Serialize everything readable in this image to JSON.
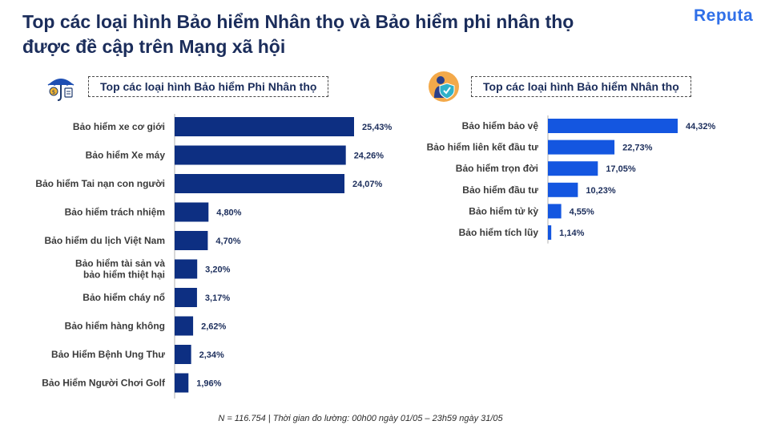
{
  "title": {
    "line1": "Top các loại hình Bảo hiểm Nhân thọ và Bảo hiểm phi nhân thọ",
    "line2": "được đề cập trên Mạng xã hội"
  },
  "brand": {
    "logo": "Reputa"
  },
  "footer": "N = 116.754 | Thời gian đo lường: 00h00 ngày 01/05 – 23h59 ngày 31/05",
  "colors": {
    "left_bar": "#0d2f82",
    "right_bar": "#1456e0",
    "title": "#1b2d5b",
    "logo": "#2f6fe8"
  },
  "icons": {
    "left": "umbrella-money-icon",
    "right": "person-shield-icon"
  },
  "chart_data": [
    {
      "type": "bar",
      "orientation": "horizontal",
      "title": "Top các loại hình Bảo hiểm Phi Nhân thọ",
      "categories": [
        [
          "Bảo hiểm  xe cơ giới"
        ],
        [
          "Bảo hiểm  Xe máy"
        ],
        [
          "Bảo hiểm  Tai nạn con người"
        ],
        [
          "Bảo hiểm  trách nhiệm"
        ],
        [
          "Bảo hiểm  du lịch Việt Nam"
        ],
        [
          "Bảo hiểm  tài sản và",
          "bảo hiểm  thiệt hại"
        ],
        [
          "Bảo hiểm  cháy nổ"
        ],
        [
          "Bảo hiểm  hàng không"
        ],
        [
          "Bảo Hiểm  Bệnh Ung Thư"
        ],
        [
          "Bảo Hiểm  Người Chơi Golf"
        ]
      ],
      "values": [
        25.43,
        24.26,
        24.07,
        4.8,
        4.7,
        3.2,
        3.17,
        2.62,
        2.34,
        1.96
      ],
      "value_labels": [
        "25,43%",
        "24,26%",
        "24,07%",
        "4,80%",
        "4,70%",
        "3,20%",
        "3,17%",
        "2,62%",
        "2,34%",
        "1,96%"
      ]
    },
    {
      "type": "bar",
      "orientation": "horizontal",
      "title": "Top các loại hình Bảo hiểm Nhân thọ",
      "categories": [
        [
          "Bảo hiểm  bảo vệ"
        ],
        [
          "Bảo hiểm  liên kết đầu tư"
        ],
        [
          "Bảo hiểm  trọn đời"
        ],
        [
          "Bảo hiểm  đầu tư"
        ],
        [
          "Bảo hiểm  tử kỳ"
        ],
        [
          "Bảo hiểm  tích lũy"
        ]
      ],
      "values": [
        44.32,
        22.73,
        17.05,
        10.23,
        4.55,
        1.14
      ],
      "value_labels": [
        "44,32%",
        "22,73%",
        "17,05%",
        "10,23%",
        "4,55%",
        "1,14%"
      ]
    }
  ]
}
